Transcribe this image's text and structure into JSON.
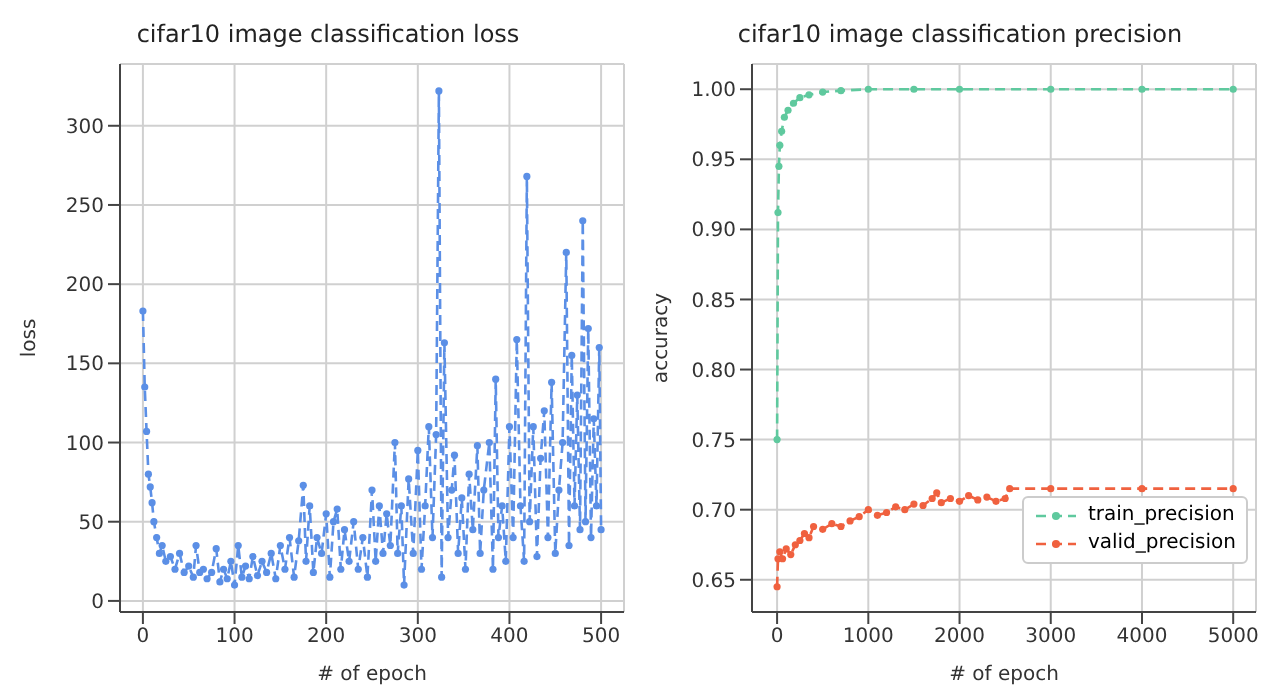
{
  "chart_data": [
    {
      "type": "line",
      "title": "cifar10 image classification loss",
      "xlabel": "# of epoch",
      "ylabel": "loss",
      "xlim": [
        -25,
        525
      ],
      "ylim": [
        -7,
        339
      ],
      "xticks": [
        0,
        100,
        200,
        300,
        400,
        500
      ],
      "yticks": [
        0,
        50,
        100,
        150,
        200,
        250,
        300
      ],
      "grid": true,
      "marker": "circle",
      "line_style": "dashed",
      "x": [
        0,
        2,
        4,
        6,
        8,
        10,
        12,
        15,
        18,
        21,
        25,
        30,
        35,
        40,
        45,
        50,
        55,
        58,
        62,
        66,
        70,
        75,
        80,
        84,
        88,
        92,
        96,
        100,
        104,
        108,
        112,
        116,
        120,
        125,
        130,
        135,
        140,
        145,
        150,
        155,
        160,
        165,
        170,
        175,
        178,
        182,
        186,
        190,
        195,
        200,
        204,
        208,
        212,
        216,
        220,
        225,
        230,
        235,
        240,
        245,
        250,
        254,
        258,
        262,
        266,
        270,
        275,
        278,
        282,
        285,
        290,
        295,
        300,
        304,
        308,
        312,
        316,
        320,
        323,
        326,
        329,
        333,
        337,
        340,
        344,
        348,
        352,
        356,
        360,
        365,
        368,
        372,
        378,
        382,
        385,
        388,
        392,
        396,
        400,
        404,
        408,
        412,
        416,
        419,
        422,
        426,
        430,
        434,
        438,
        442,
        446,
        450,
        454,
        458,
        462,
        465,
        468,
        471,
        474,
        477,
        480,
        483,
        486,
        489,
        492,
        495,
        498,
        500
      ],
      "series": [
        {
          "color": "#5b8fe6",
          "values": [
            183,
            135,
            107,
            80,
            72,
            62,
            50,
            40,
            30,
            35,
            25,
            28,
            20,
            30,
            18,
            22,
            15,
            35,
            18,
            20,
            14,
            18,
            33,
            12,
            20,
            14,
            25,
            10,
            35,
            15,
            22,
            14,
            28,
            16,
            25,
            18,
            30,
            14,
            35,
            20,
            40,
            15,
            38,
            73,
            25,
            60,
            18,
            40,
            30,
            55,
            15,
            50,
            58,
            20,
            45,
            25,
            50,
            20,
            40,
            15,
            70,
            25,
            60,
            30,
            55,
            35,
            100,
            30,
            60,
            10,
            77,
            30,
            95,
            20,
            60,
            110,
            40,
            105,
            322,
            15,
            163,
            40,
            70,
            92,
            30,
            65,
            20,
            80,
            45,
            98,
            30,
            70,
            100,
            20,
            140,
            40,
            60,
            25,
            110,
            40,
            165,
            60,
            25,
            268,
            50,
            110,
            28,
            90,
            120,
            40,
            138,
            30,
            70,
            100,
            220,
            35,
            155,
            60,
            130,
            45,
            240,
            50,
            172,
            40,
            115,
            60,
            160,
            45
          ]
        }
      ]
    },
    {
      "type": "line",
      "title": "cifar10 image classification precision",
      "xlabel": "# of epoch",
      "ylabel": "accuracy",
      "xlim": [
        -275,
        5250
      ],
      "ylim": [
        0.627,
        1.018
      ],
      "xticks": [
        0,
        1000,
        2000,
        3000,
        4000,
        5000
      ],
      "yticks": [
        0.65,
        {
          "value": 0.7,
          "label": "0.70"
        },
        0.75,
        {
          "value": 0.8,
          "label": "0.80"
        },
        0.85,
        {
          "value": 0.9,
          "label": "0.90"
        },
        0.95,
        {
          "value": 1,
          "label": "1.00"
        }
      ],
      "grid": true,
      "marker": "circle",
      "line_style": "dashed",
      "legend": "bottom right",
      "series": [
        {
          "name": "train_precision",
          "color": "#5fc99e",
          "x": [
            0,
            10,
            20,
            30,
            50,
            80,
            120,
            180,
            250,
            350,
            500,
            700,
            1000,
            1500,
            2000,
            3000,
            4000,
            5000
          ],
          "values": [
            0.75,
            0.912,
            0.945,
            0.96,
            0.97,
            0.98,
            0.985,
            0.99,
            0.994,
            0.996,
            0.998,
            0.999,
            1.0,
            1.0,
            1.0,
            1.0,
            1.0,
            1.0
          ]
        },
        {
          "name": "valid_precision",
          "color": "#f0613f",
          "x": [
            0,
            10,
            30,
            60,
            100,
            150,
            200,
            250,
            300,
            350,
            400,
            500,
            600,
            700,
            800,
            900,
            1000,
            1100,
            1200,
            1300,
            1400,
            1500,
            1600,
            1700,
            1750,
            1800,
            1900,
            2000,
            2100,
            2200,
            2300,
            2400,
            2500,
            2550,
            3000,
            4000,
            5000
          ],
          "values": [
            0.645,
            0.665,
            0.67,
            0.665,
            0.672,
            0.668,
            0.675,
            0.678,
            0.683,
            0.68,
            0.688,
            0.686,
            0.69,
            0.688,
            0.692,
            0.695,
            0.7,
            0.696,
            0.698,
            0.702,
            0.7,
            0.704,
            0.703,
            0.708,
            0.712,
            0.705,
            0.708,
            0.706,
            0.71,
            0.707,
            0.709,
            0.706,
            0.708,
            0.715,
            0.715,
            0.715,
            0.715
          ]
        }
      ]
    }
  ]
}
